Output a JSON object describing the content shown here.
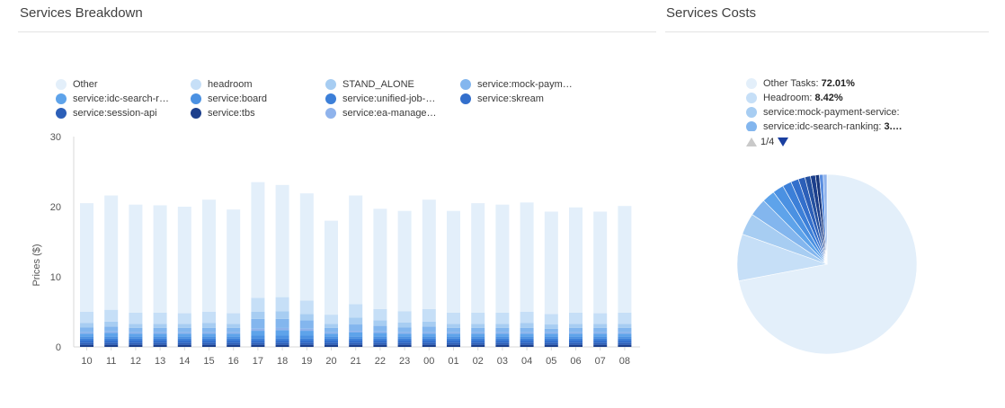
{
  "left_panel": {
    "title": "Services Breakdown"
  },
  "right_panel": {
    "title": "Services Costs"
  },
  "colors": {
    "Other": "#e3effa",
    "headroom": "#c6dff7",
    "STAND_ALONE": "#a7cdf2",
    "service:mock-paym…": "#83b6ee",
    "service:idc-search-r…": "#5ea3ea",
    "service:board": "#4b91e2",
    "service:unified-job-…": "#3c7fd8",
    "service:skream": "#336fcc",
    "service:session-api": "#2c5fb8",
    "service:tbs": "#1c3f8c",
    "service:ea-manage…": "#8fb3ec"
  },
  "chart_data": [
    {
      "type": "bar",
      "stacked": true,
      "title": "Services Breakdown",
      "xlabel": "",
      "ylabel": "Prices ($)",
      "ylim": [
        0,
        30
      ],
      "yticks": [
        0,
        10,
        20,
        30
      ],
      "grid": false,
      "legend_position": "top",
      "categories": [
        "10",
        "11",
        "12",
        "13",
        "14",
        "15",
        "16",
        "17",
        "18",
        "19",
        "20",
        "21",
        "22",
        "23",
        "00",
        "01",
        "02",
        "03",
        "04",
        "05",
        "06",
        "07",
        "08"
      ],
      "series": [
        {
          "name": "service:tbs",
          "values": [
            0.3,
            0.3,
            0.3,
            0.3,
            0.3,
            0.3,
            0.3,
            0.3,
            0.3,
            0.3,
            0.3,
            0.3,
            0.3,
            0.3,
            0.3,
            0.3,
            0.3,
            0.3,
            0.3,
            0.3,
            0.3,
            0.3,
            0.3
          ]
        },
        {
          "name": "service:session-api",
          "values": [
            0.3,
            0.3,
            0.3,
            0.3,
            0.3,
            0.3,
            0.3,
            0.3,
            0.3,
            0.3,
            0.3,
            0.3,
            0.3,
            0.3,
            0.3,
            0.3,
            0.3,
            0.3,
            0.3,
            0.3,
            0.3,
            0.3,
            0.3
          ]
        },
        {
          "name": "service:skream",
          "values": [
            0.3,
            0.3,
            0.3,
            0.3,
            0.3,
            0.3,
            0.3,
            0.3,
            0.3,
            0.3,
            0.3,
            0.3,
            0.3,
            0.3,
            0.3,
            0.3,
            0.3,
            0.3,
            0.3,
            0.3,
            0.3,
            0.3,
            0.3
          ]
        },
        {
          "name": "service:unified-job-…",
          "values": [
            0.3,
            0.3,
            0.3,
            0.3,
            0.3,
            0.3,
            0.3,
            0.3,
            0.3,
            0.3,
            0.3,
            0.3,
            0.3,
            0.3,
            0.3,
            0.3,
            0.3,
            0.3,
            0.3,
            0.3,
            0.3,
            0.3,
            0.3
          ]
        },
        {
          "name": "service:board",
          "values": [
            0.3,
            0.3,
            0.3,
            0.3,
            0.3,
            0.3,
            0.3,
            0.4,
            0.4,
            0.4,
            0.3,
            0.3,
            0.3,
            0.3,
            0.3,
            0.3,
            0.3,
            0.3,
            0.3,
            0.3,
            0.3,
            0.3,
            0.3
          ]
        },
        {
          "name": "service:idc-search-r…",
          "values": [
            0.4,
            0.5,
            0.4,
            0.4,
            0.4,
            0.4,
            0.4,
            0.7,
            0.8,
            0.7,
            0.4,
            0.6,
            0.5,
            0.4,
            0.4,
            0.4,
            0.4,
            0.4,
            0.4,
            0.4,
            0.4,
            0.4,
            0.4
          ]
        },
        {
          "name": "service:ea-manage…",
          "values": [
            0.2,
            0.2,
            0.2,
            0.2,
            0.2,
            0.2,
            0.2,
            0.3,
            0.3,
            0.3,
            0.2,
            0.2,
            0.2,
            0.2,
            0.2,
            0.2,
            0.2,
            0.2,
            0.2,
            0.2,
            0.2,
            0.2,
            0.2
          ]
        },
        {
          "name": "service:mock-paym…",
          "values": [
            0.7,
            0.7,
            0.6,
            0.6,
            0.6,
            0.6,
            0.6,
            1.4,
            1.3,
            1.2,
            0.6,
            0.9,
            0.8,
            0.7,
            0.8,
            0.6,
            0.6,
            0.6,
            0.6,
            0.5,
            0.6,
            0.6,
            0.6
          ]
        },
        {
          "name": "STAND_ALONE",
          "values": [
            0.6,
            0.7,
            0.6,
            0.6,
            0.6,
            0.7,
            0.6,
            1.0,
            1.1,
            0.9,
            0.6,
            1.0,
            0.8,
            0.7,
            0.7,
            0.6,
            0.6,
            0.6,
            0.7,
            0.6,
            0.6,
            0.6,
            0.6
          ]
        },
        {
          "name": "headroom",
          "values": [
            1.6,
            1.7,
            1.6,
            1.6,
            1.5,
            1.6,
            1.5,
            2.0,
            2.0,
            1.9,
            1.3,
            1.9,
            1.6,
            1.6,
            1.8,
            1.6,
            1.6,
            1.6,
            1.6,
            1.5,
            1.6,
            1.5,
            1.6
          ]
        },
        {
          "name": "Other",
          "values": [
            15.5,
            16.3,
            15.4,
            15.3,
            15.2,
            16.0,
            14.8,
            16.5,
            16.0,
            15.3,
            13.4,
            15.5,
            14.3,
            14.3,
            15.6,
            14.5,
            15.6,
            15.4,
            15.6,
            14.6,
            15.0,
            14.5,
            15.2
          ]
        }
      ]
    },
    {
      "type": "pie",
      "title": "Services Costs",
      "legend_position": "top",
      "legend_entries": [
        {
          "label": "Other Tasks: ",
          "value_text": "72.01%"
        },
        {
          "label": "Headroom: ",
          "value_text": "8.42%"
        },
        {
          "label": "service:mock-payment-service: ",
          "value_text": ""
        },
        {
          "label": "service:idc-search-ranking: ",
          "value_text": "3.…"
        }
      ],
      "pager": "1/4",
      "slices": [
        {
          "name": "Other Tasks",
          "value": 72.01,
          "color": "#e3effa"
        },
        {
          "name": "Headroom",
          "value": 8.42,
          "color": "#c6dff7"
        },
        {
          "name": "service:mock-payment-service",
          "value": 3.9,
          "color": "#a7cdf2"
        },
        {
          "name": "service:idc-search-ranking",
          "value": 3.2,
          "color": "#83b6ee"
        },
        {
          "name": "",
          "value": 2.3,
          "color": "#5ea3ea"
        },
        {
          "name": "",
          "value": 2.0,
          "color": "#4b91e2"
        },
        {
          "name": "",
          "value": 1.6,
          "color": "#3c7fd8"
        },
        {
          "name": "",
          "value": 1.4,
          "color": "#336fcc"
        },
        {
          "name": "",
          "value": 1.2,
          "color": "#2c5fb8"
        },
        {
          "name": "",
          "value": 1.0,
          "color": "#24509f"
        },
        {
          "name": "",
          "value": 0.9,
          "color": "#1c3f8c"
        },
        {
          "name": "",
          "value": 0.7,
          "color": "#17357a"
        },
        {
          "name": "",
          "value": 0.7,
          "color": "#5a8ee0"
        },
        {
          "name": "",
          "value": 0.67,
          "color": "#8fb3ec"
        }
      ]
    }
  ],
  "bar_legend": [
    {
      "label": "Other",
      "color": "#e3effa"
    },
    {
      "label": "headroom",
      "color": "#c6dff7"
    },
    {
      "label": "STAND_ALONE",
      "color": "#a7cdf2"
    },
    {
      "label": "service:mock-paym…",
      "color": "#83b6ee"
    },
    {
      "label": "service:idc-search-r…",
      "color": "#5ea3ea"
    },
    {
      "label": "service:board",
      "color": "#4b91e2"
    },
    {
      "label": "service:unified-job-…",
      "color": "#3c7fd8"
    },
    {
      "label": "service:skream",
      "color": "#336fcc"
    },
    {
      "label": "service:session-api",
      "color": "#2c5fb8"
    },
    {
      "label": "service:tbs",
      "color": "#1c3f8c"
    },
    {
      "label": "service:ea-manage…",
      "color": "#8fb3ec"
    }
  ]
}
